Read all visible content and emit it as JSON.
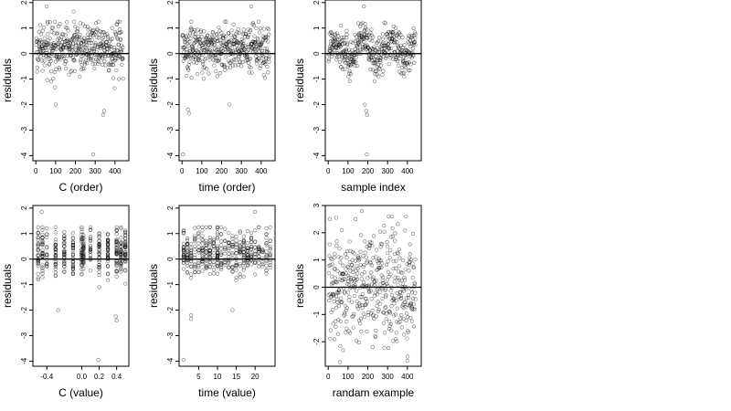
{
  "colors": {
    "points": "#000000",
    "frame": "#000000",
    "hline": "#000000",
    "background": "#ffffff"
  },
  "chart_data": [
    {
      "type": "scatter",
      "title": "",
      "xlabel": "C (order)",
      "ylabel": "residuals",
      "xlim": [
        -15,
        470
      ],
      "ylim": [
        -4.2,
        2.1
      ],
      "xticks": [
        0,
        100,
        200,
        300,
        400
      ],
      "yticks": [
        -4,
        -3,
        -2,
        -1,
        0,
        1,
        2
      ],
      "hline": 0,
      "grid": false,
      "series_kind": "order",
      "notable_points": [
        {
          "x": 55,
          "y": 1.85
        },
        {
          "x": 190,
          "y": 1.65
        },
        {
          "x": 100,
          "y": -2.0
        },
        {
          "x": 345,
          "y": -2.25
        },
        {
          "x": 340,
          "y": -2.4
        },
        {
          "x": 290,
          "y": -3.95
        }
      ]
    },
    {
      "type": "scatter",
      "title": "",
      "xlabel": "time (order)",
      "ylabel": "residuals",
      "xlim": [
        -15,
        470
      ],
      "ylim": [
        -4.2,
        2.1
      ],
      "xticks": [
        0,
        100,
        200,
        300,
        400
      ],
      "yticks": [
        -4,
        -3,
        -2,
        -1,
        0,
        1,
        2
      ],
      "hline": 0,
      "grid": false,
      "series_kind": "order",
      "notable_points": [
        {
          "x": 350,
          "y": 1.85
        },
        {
          "x": 30,
          "y": -2.2
        },
        {
          "x": 35,
          "y": -2.35
        },
        {
          "x": 240,
          "y": -2.0
        },
        {
          "x": 5,
          "y": -3.95
        }
      ]
    },
    {
      "type": "scatter",
      "title": "",
      "xlabel": "sample index",
      "ylabel": "residuals",
      "xlim": [
        -15,
        470
      ],
      "ylim": [
        -4.2,
        2.1
      ],
      "xticks": [
        0,
        100,
        200,
        300,
        400
      ],
      "yticks": [
        -4,
        -3,
        -2,
        -1,
        0,
        1,
        2
      ],
      "hline": 0,
      "grid": false,
      "series_kind": "sorted",
      "notable_points": [
        {
          "x": 180,
          "y": 1.85
        },
        {
          "x": 185,
          "y": -2.0
        },
        {
          "x": 192,
          "y": -2.25
        },
        {
          "x": 196,
          "y": -2.4
        },
        {
          "x": 195,
          "y": -3.95
        }
      ]
    },
    {
      "type": "scatter",
      "title": "",
      "xlabel": "C (value)",
      "ylabel": "residuals",
      "xlim": [
        -0.56,
        0.54
      ],
      "ylim": [
        -4.2,
        2.1
      ],
      "xticks": [
        -0.4,
        0.0,
        0.2,
        0.4
      ],
      "xtick_labels": [
        "-0.4",
        "0.0",
        "0.2",
        "0.4"
      ],
      "yticks": [
        -4,
        -3,
        -2,
        -1,
        0,
        1,
        2
      ],
      "hline": 0,
      "grid": false,
      "series_kind": "columns",
      "columns_x": [
        -0.5,
        -0.45,
        -0.4,
        -0.3,
        -0.2,
        -0.1,
        0.0,
        0.02,
        0.1,
        0.2,
        0.3,
        0.4,
        0.45,
        0.5
      ],
      "notable_points": [
        {
          "x": -0.46,
          "y": 1.85
        },
        {
          "x": -0.27,
          "y": -2.0
        },
        {
          "x": 0.39,
          "y": -2.25
        },
        {
          "x": 0.4,
          "y": -2.4
        },
        {
          "x": 0.19,
          "y": -3.95
        }
      ]
    },
    {
      "type": "scatter",
      "title": "",
      "xlabel": "time (value)",
      "ylabel": "residuals",
      "xlim": [
        -0.2,
        25.3
      ],
      "ylim": [
        -4.2,
        2.1
      ],
      "xticks": [
        5,
        10,
        15,
        20
      ],
      "yticks": [
        -4,
        -3,
        -2,
        -1,
        0,
        1,
        2
      ],
      "hline": 0,
      "grid": false,
      "series_kind": "columns",
      "columns_x": [
        1,
        2,
        3,
        4,
        5,
        6,
        7,
        8,
        9,
        10,
        11,
        12,
        13,
        14,
        15,
        16,
        17,
        18,
        19,
        20,
        21,
        22,
        23,
        24
      ],
      "notable_points": [
        {
          "x": 20,
          "y": 1.85
        },
        {
          "x": 3,
          "y": -2.2
        },
        {
          "x": 3,
          "y": -2.35
        },
        {
          "x": 14,
          "y": -2.0
        },
        {
          "x": 1,
          "y": -3.95
        }
      ]
    },
    {
      "type": "scatter",
      "title": "",
      "xlabel": "randam example",
      "ylabel": "residuals",
      "xlim": [
        -15,
        470
      ],
      "ylim": [
        -2.9,
        3.0
      ],
      "xticks": [
        0,
        100,
        200,
        300,
        400
      ],
      "yticks": [
        -2,
        -1,
        0,
        1,
        2,
        3
      ],
      "hline": 0,
      "grid": false,
      "series_kind": "random",
      "notable_points": [
        {
          "x": 170,
          "y": 2.8
        },
        {
          "x": 40,
          "y": 2.55
        },
        {
          "x": 400,
          "y": -2.7
        },
        {
          "x": 60,
          "y": -2.75
        }
      ]
    }
  ]
}
